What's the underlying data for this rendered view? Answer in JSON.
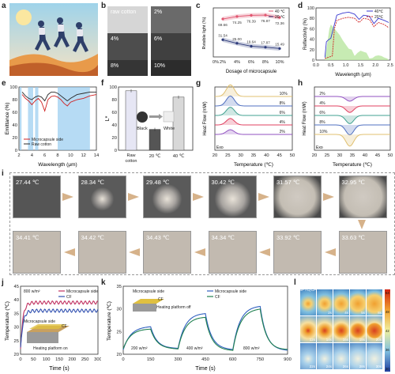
{
  "panel_labels": [
    "a",
    "b",
    "c",
    "d",
    "e",
    "f",
    "g",
    "h",
    "i",
    "j",
    "k",
    "l"
  ],
  "panel_b": {
    "labels": [
      "raw cotton",
      "2%",
      "4%",
      "6%",
      "8%",
      "10%"
    ]
  },
  "chart_data": [
    {
      "panel": "c",
      "type": "line",
      "xlabel": "Dosage of microcapsule",
      "ylabel": "Rvisible light (%)",
      "categories": [
        "2%",
        "4%",
        "6%",
        "8%",
        "10%"
      ],
      "series": [
        {
          "name": "40 ℃",
          "values": [
            69.66,
            74.25,
            76.39,
            76.87,
            72.36
          ],
          "color": "#e0546e"
        },
        {
          "name": "20 ℃",
          "values": [
            31.54,
            25.0,
            19.64,
            17.87,
            15.49
          ],
          "color": "#2d3a7a"
        }
      ],
      "xtick_first": "0%"
    },
    {
      "panel": "d",
      "type": "line",
      "xlabel": "Wavelength (μm)",
      "ylabel": "Reflectivity (%)",
      "xlim": [
        0,
        2.5
      ],
      "ylim": [
        0,
        100
      ],
      "xticks": [
        "0.0",
        "0.5",
        "1.0",
        "1.5",
        "2.0",
        "2.5"
      ],
      "yticks": [
        "0",
        "20",
        "40",
        "60",
        "80",
        "100"
      ],
      "series": [
        {
          "name": "40℃",
          "color": "#3a3ad0"
        },
        {
          "name": "20℃",
          "color": "#d02020"
        }
      ]
    },
    {
      "panel": "e",
      "type": "line",
      "xlabel": "Wavelength (μm)",
      "ylabel": "Emittance (%)",
      "xlim": [
        2,
        14
      ],
      "ylim": [
        0,
        100
      ],
      "xticks": [
        "2",
        "4",
        "6",
        "8",
        "10",
        "12",
        "14"
      ],
      "yticks": [
        "0",
        "20",
        "40",
        "60",
        "80",
        "100"
      ],
      "series": [
        {
          "name": "Microcapsule side",
          "color": "#d02020"
        },
        {
          "name": "Raw cotton",
          "color": "#2a2a2a"
        }
      ]
    },
    {
      "panel": "f",
      "type": "bar",
      "ylabel": "L*",
      "ylim": [
        0,
        100
      ],
      "yticks": [
        "0",
        "20",
        "40",
        "60",
        "80",
        "100"
      ],
      "categories": [
        "Raw cotton",
        "20 ℃",
        "40 ℃"
      ],
      "values": [
        94,
        33,
        84
      ],
      "colors": [
        "#e6e6f4",
        "#555555",
        "#d8d8d8"
      ],
      "annotations": [
        "Black",
        "White"
      ]
    },
    {
      "panel": "g",
      "type": "line",
      "xlabel": "Temperature (℃)",
      "ylabel": "Heat Flow (mW)",
      "xlim": [
        20,
        50
      ],
      "xticks": [
        "20",
        "25",
        "30",
        "35",
        "40",
        "45",
        "50"
      ],
      "series_labels": [
        "10%",
        "8%",
        "6%",
        "4%",
        "2%"
      ],
      "colors": [
        "#e0c070",
        "#5070c0",
        "#40a090",
        "#e04060",
        "#9050c0"
      ],
      "footnote": "Exo"
    },
    {
      "panel": "h",
      "type": "line",
      "xlabel": "Temperature (℃)",
      "ylabel": "Heat Flow (mW)",
      "xlim": [
        20,
        50
      ],
      "xticks": [
        "20",
        "25",
        "30",
        "35",
        "40",
        "45",
        "50"
      ],
      "series_labels": [
        "2%",
        "4%",
        "6%",
        "8%",
        "10%"
      ],
      "colors": [
        "#9050c0",
        "#e04060",
        "#40a090",
        "#5070c0",
        "#e0c070"
      ],
      "footnote": "Exo"
    },
    {
      "panel": "j",
      "type": "line",
      "xlabel": "Time (s)",
      "ylabel": "Temperature (℃)",
      "xlim": [
        0,
        300
      ],
      "ylim": [
        20,
        45
      ],
      "xticks": [
        "0",
        "50",
        "100",
        "150",
        "200",
        "250",
        "300"
      ],
      "yticks": [
        "20",
        "25",
        "30",
        "35",
        "40",
        "45"
      ],
      "series": [
        {
          "name": "Microcapsule side",
          "color": "#c03060",
          "plateau": 39
        },
        {
          "name": "CF",
          "color": "#3050b0",
          "plateau": 36
        }
      ],
      "annotations": [
        "800 w/m²",
        "Microcapsule side",
        "CF",
        "Heating platform on"
      ]
    },
    {
      "panel": "k",
      "type": "line",
      "xlabel": "Time (s)",
      "ylabel": "Temperature (℃)",
      "xlim": [
        0,
        900
      ],
      "ylim": [
        20,
        35
      ],
      "xticks": [
        "0",
        "150",
        "300",
        "450",
        "600",
        "750",
        "900"
      ],
      "yticks": [
        "20",
        "25",
        "30",
        "35"
      ],
      "series": [
        {
          "name": "Microcapsule side",
          "color": "#3060c0"
        },
        {
          "name": "CF",
          "color": "#208050"
        }
      ],
      "annotations": [
        "Microcapsule side",
        "CF",
        "Heating platform off",
        "200 w/m²",
        "400 w/m²",
        "800 w/m²"
      ]
    }
  ],
  "panel_i": {
    "temps": [
      "27.44 ℃",
      "28.34 ℃",
      "29.48 ℃",
      "30.42 ℃",
      "31.57 ℃",
      "32.95 ℃",
      "33.63 ℃",
      "33.92 ℃",
      "34.34 ℃",
      "34.43 ℃",
      "34.42 ℃",
      "34.41 ℃"
    ]
  },
  "panel_l": {
    "label": "MPTC|CF",
    "times": [
      "",
      "2s",
      "4s",
      "5s",
      "8s",
      "12s",
      "14s",
      "16s",
      "18s",
      "20s",
      "22s",
      "24s",
      "26s",
      "28s",
      "30s"
    ],
    "colorbar": [
      "54",
      "48",
      "42",
      "36",
      "30"
    ]
  }
}
